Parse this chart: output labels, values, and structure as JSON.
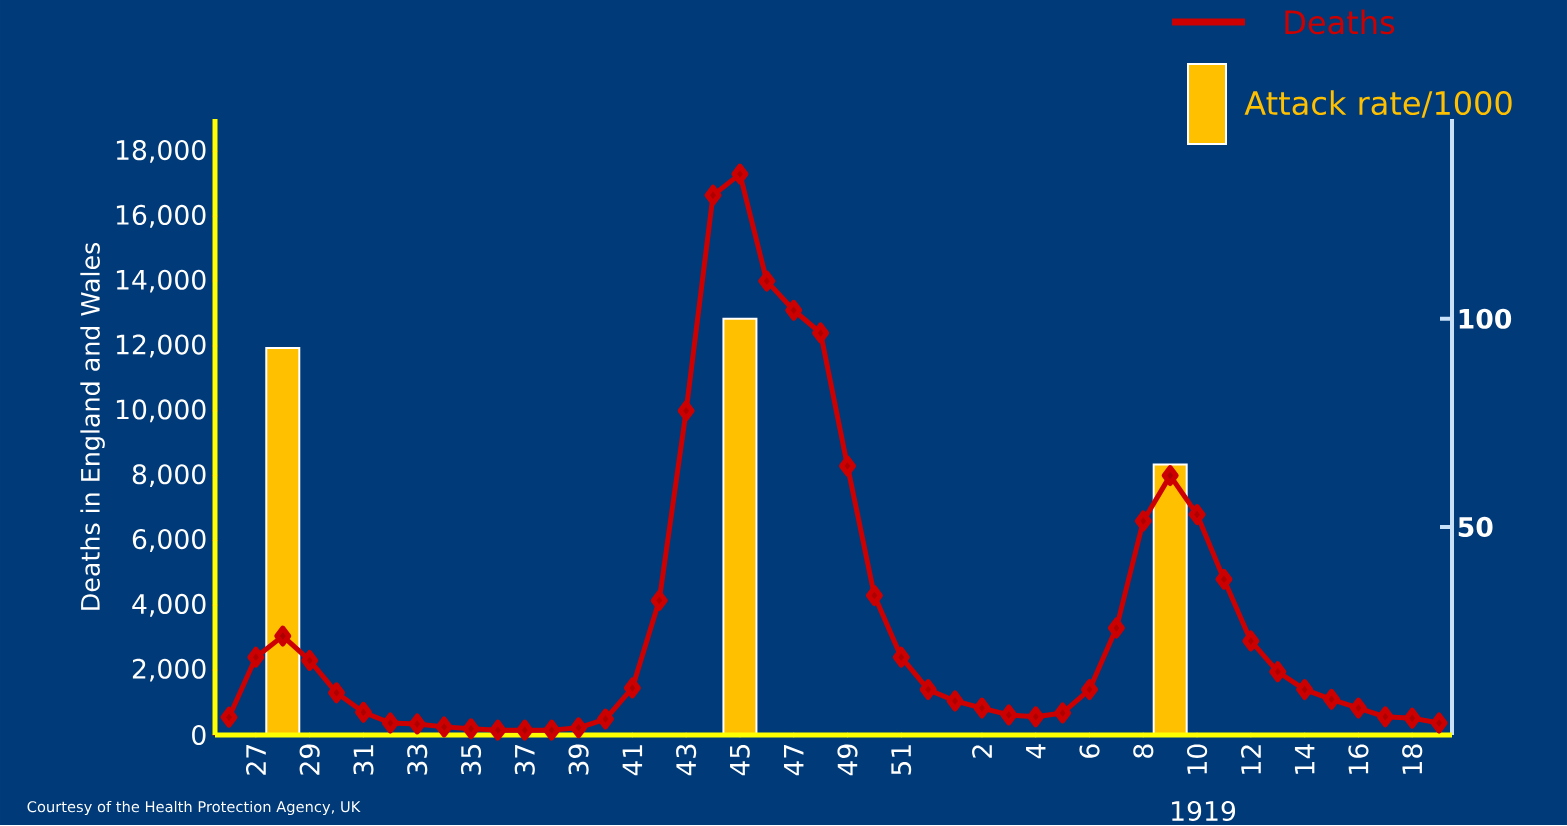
{
  "chart_data": {
    "type": "line",
    "ylabel": "Deaths in England and Wales",
    "categories": [
      null,
      "27",
      null,
      "29",
      null,
      "31",
      null,
      "33",
      null,
      "35",
      null,
      "37",
      null,
      "39",
      null,
      "41",
      null,
      "43",
      null,
      "45",
      null,
      "47",
      null,
      "49",
      null,
      "51",
      null,
      null,
      "2",
      null,
      "4",
      null,
      "6",
      null,
      "8",
      null,
      "10",
      null,
      "12",
      null,
      "14",
      null,
      "16",
      null,
      "18",
      null
    ],
    "series": [
      {
        "name": "Attack rate/1000",
        "type": "bar",
        "axis": "y2",
        "color": "#ffc000",
        "values": [
          null,
          null,
          93,
          null,
          null,
          null,
          null,
          null,
          null,
          null,
          null,
          null,
          null,
          null,
          null,
          null,
          null,
          null,
          null,
          100,
          null,
          null,
          null,
          null,
          null,
          null,
          null,
          null,
          null,
          null,
          null,
          null,
          null,
          null,
          null,
          65,
          null,
          null,
          null,
          null,
          null,
          null,
          null,
          null,
          null,
          null
        ]
      },
      {
        "name": "Deaths",
        "color": "#cc0000",
        "values": [
          550,
          2400,
          3050,
          2300,
          1300,
          700,
          370,
          340,
          250,
          190,
          150,
          150,
          150,
          220,
          490,
          1450,
          4150,
          10000,
          16650,
          17300,
          14000,
          13100,
          12400,
          8300,
          4300,
          2400,
          1400,
          1050,
          830,
          620,
          560,
          680,
          1400,
          3300,
          6600,
          8000,
          6800,
          4800,
          2900,
          1950,
          1400,
          1100,
          830,
          560,
          520,
          370
        ]
      }
    ],
    "ylim": [
      0,
      19000
    ],
    "yticks": [
      0,
      {
        "value": 2000,
        "label": "2,000"
      },
      {
        "value": 4000,
        "label": "4,000"
      },
      {
        "value": 6000,
        "label": "6,000"
      },
      {
        "value": 8000,
        "label": "8,000"
      },
      {
        "value": 10000,
        "label": "10,000"
      },
      {
        "value": 12000,
        "label": "12,000"
      },
      {
        "value": 14000,
        "label": "14,000"
      },
      {
        "value": 16000,
        "label": "16,000"
      },
      {
        "value": 18000,
        "label": "18,000"
      }
    ],
    "y2lim": [
      0,
      148
    ],
    "y2ticks": [
      50,
      100
    ],
    "marker": "diamond",
    "legend": "top right",
    "annotations": [
      "1919",
      "Courtesy of the Health Protection Agency, UK"
    ]
  }
}
